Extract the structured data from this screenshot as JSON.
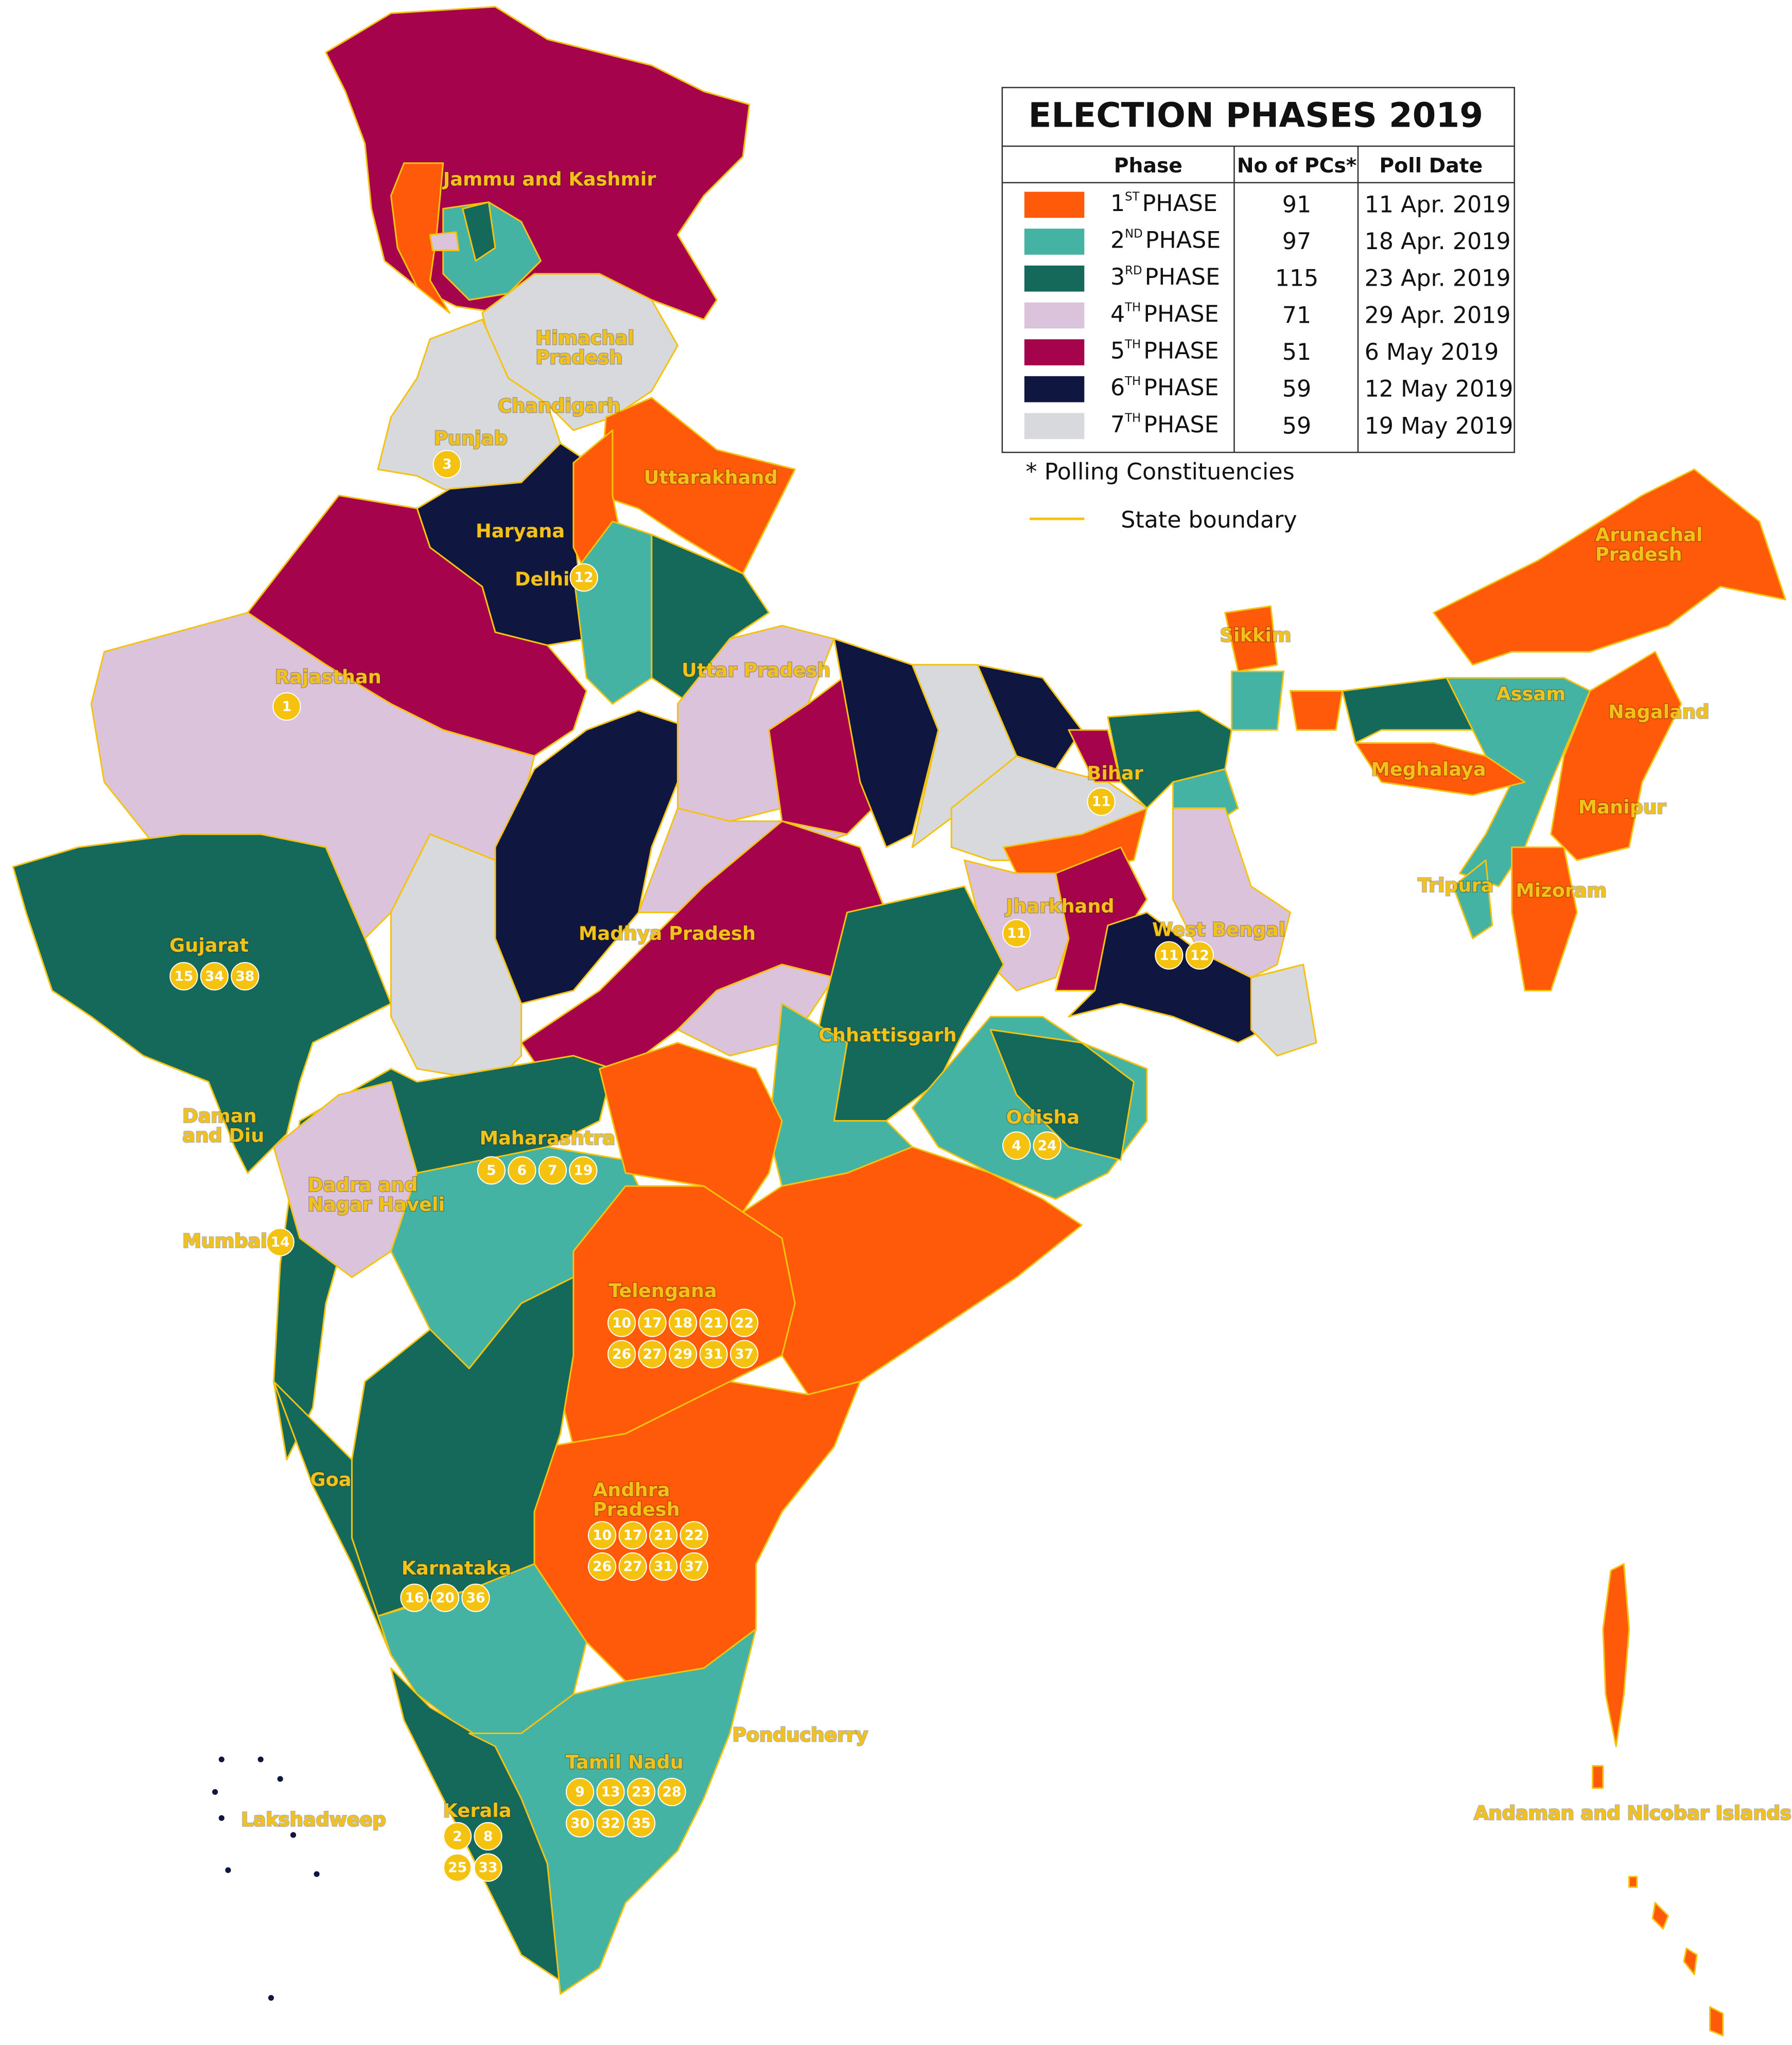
{
  "title": "ELECTION PHASES 2019",
  "table": {
    "columns": [
      "Phase",
      "No of PCs*",
      "Poll Date"
    ],
    "rows": [
      {
        "ordinal": "1",
        "suffix": "ST",
        "word": "PHASE",
        "pcs": 91,
        "date": "11 Apr. 2019",
        "color": "#ff5a0a"
      },
      {
        "ordinal": "2",
        "suffix": "ND",
        "word": "PHASE",
        "pcs": 97,
        "date": "18 Apr. 2019",
        "color": "#45b3a3"
      },
      {
        "ordinal": "3",
        "suffix": "RD",
        "word": "PHASE",
        "pcs": 115,
        "date": "23 Apr. 2019",
        "color": "#14695a"
      },
      {
        "ordinal": "4",
        "suffix": "TH",
        "word": "PHASE",
        "pcs": 71,
        "date": "29 Apr. 2019",
        "color": "#dcc3dc"
      },
      {
        "ordinal": "5",
        "suffix": "TH",
        "word": "PHASE",
        "pcs": 51,
        "date": "6 May 2019",
        "color": "#a5034c"
      },
      {
        "ordinal": "6",
        "suffix": "TH",
        "word": "PHASE",
        "pcs": 59,
        "date": "12 May 2019",
        "color": "#0f1640"
      },
      {
        "ordinal": "7",
        "suffix": "TH",
        "word": "PHASE",
        "pcs": 59,
        "date": "19 May 2019",
        "color": "#d7d9dc"
      }
    ]
  },
  "footnote": "* Polling Constituencies",
  "boundary_legend": "State boundary",
  "labels": [
    {
      "lines": [
        "Jammu and Kashmir"
      ],
      "badges": []
    },
    {
      "lines": [
        "Himachal",
        "Pradesh"
      ],
      "badges": []
    },
    {
      "lines": [
        "Chandigarh"
      ],
      "badges": []
    },
    {
      "lines": [
        "Punjab"
      ],
      "badges": [
        3
      ]
    },
    {
      "lines": [
        "Uttarakhand"
      ],
      "badges": []
    },
    {
      "lines": [
        "Haryana"
      ],
      "badges": []
    },
    {
      "lines": [
        "Delhi"
      ],
      "badges": [
        12
      ]
    },
    {
      "lines": [
        "Rajasthan"
      ],
      "badges": [
        1
      ]
    },
    {
      "lines": [
        "Uttar Pradesh"
      ],
      "badges": []
    },
    {
      "lines": [
        "Sikkim"
      ],
      "badges": []
    },
    {
      "lines": [
        "Arunachal",
        "Pradesh"
      ],
      "badges": []
    },
    {
      "lines": [
        "Assam"
      ],
      "badges": []
    },
    {
      "lines": [
        "Nagaland"
      ],
      "badges": []
    },
    {
      "lines": [
        "Meghalaya"
      ],
      "badges": []
    },
    {
      "lines": [
        "Bihar"
      ],
      "badges": [
        11
      ]
    },
    {
      "lines": [
        "Manipur"
      ],
      "badges": []
    },
    {
      "lines": [
        "Tripura"
      ],
      "badges": []
    },
    {
      "lines": [
        "Mizoram"
      ],
      "badges": []
    },
    {
      "lines": [
        "Jharkhand"
      ],
      "badges": [
        11
      ]
    },
    {
      "lines": [
        "West Bengal"
      ],
      "badges": [
        11,
        12
      ]
    },
    {
      "lines": [
        "Gujarat"
      ],
      "badges": [
        15,
        34,
        38
      ]
    },
    {
      "lines": [
        "Madhya Pradesh"
      ],
      "badges": []
    },
    {
      "lines": [
        "Chhattisgarh"
      ],
      "badges": []
    },
    {
      "lines": [
        "Odisha"
      ],
      "badges": [
        4,
        24
      ]
    },
    {
      "lines": [
        "Daman",
        "and Diu"
      ],
      "badges": []
    },
    {
      "lines": [
        "Maharashtra"
      ],
      "badges": [
        5,
        6,
        7,
        19
      ]
    },
    {
      "lines": [
        "Dadra and",
        "Nagar Haveli"
      ],
      "badges": []
    },
    {
      "lines": [
        "Mumbai"
      ],
      "badges": [
        14
      ]
    },
    {
      "lines": [
        "Telengana"
      ],
      "badges": [
        10,
        17,
        18,
        21,
        22,
        26,
        27,
        29,
        31,
        37
      ]
    },
    {
      "lines": [
        "Goa"
      ],
      "badges": []
    },
    {
      "lines": [
        "Andhra",
        "Pradesh"
      ],
      "badges": [
        10,
        17,
        21,
        22,
        26,
        27,
        31,
        37
      ]
    },
    {
      "lines": [
        "Karnataka"
      ],
      "badges": [
        16,
        20,
        36
      ]
    },
    {
      "lines": [
        "Ponducherry"
      ],
      "badges": []
    },
    {
      "lines": [
        "Tamil Nadu"
      ],
      "badges": [
        9,
        13,
        23,
        28,
        30,
        32,
        35
      ]
    },
    {
      "lines": [
        "Lakshadweep"
      ],
      "badges": []
    },
    {
      "lines": [
        "Kerala"
      ],
      "badges": [
        2,
        8,
        25,
        33
      ]
    },
    {
      "lines": [
        "Andaman and Nicobar Islands"
      ],
      "badges": []
    }
  ]
}
